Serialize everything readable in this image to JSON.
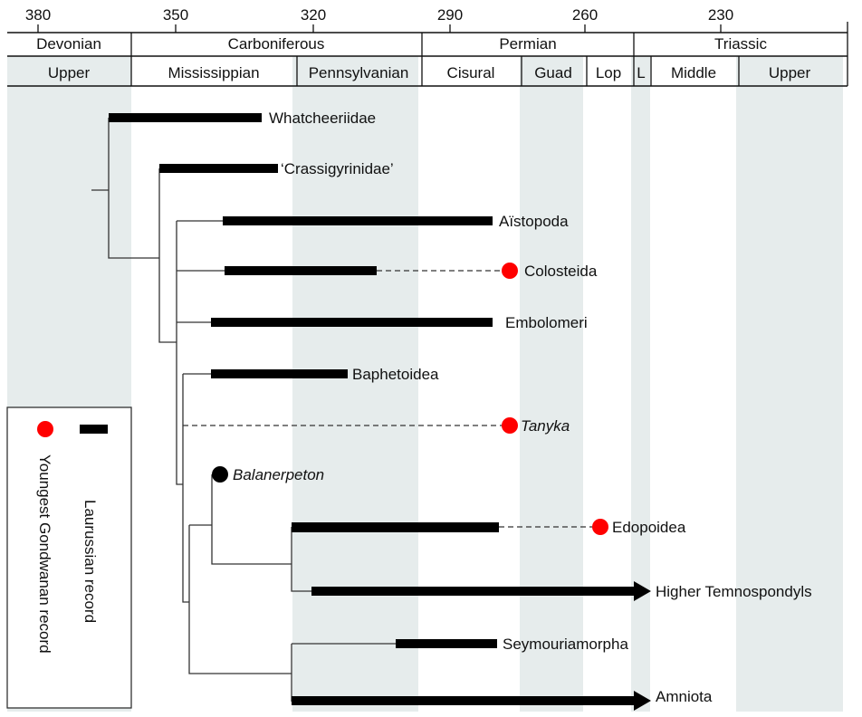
{
  "time_axis": {
    "ticks": [
      "380",
      "350",
      "320",
      "290",
      "260",
      "230"
    ]
  },
  "periods": [
    "Devonian",
    "Carboniferous",
    "Permian",
    "Triassic"
  ],
  "subdivisions": [
    "Upper",
    "Mississippian",
    "Pennsylvanian",
    "Cisural",
    "Guad",
    "Lop",
    "L",
    "Middle",
    "Upper"
  ],
  "taxa": {
    "whatcheeriidae": "Whatcheeriidae",
    "crassigyrinidae": "‘Crassigyrinidae’",
    "aistopoda": "Aïstopoda",
    "colosteida": "Colosteida",
    "embolomeri": "Embolomeri",
    "baphetoidea": "Baphetoidea",
    "tanyka": "Tanyka",
    "balanerpeton": "Balanerpeton",
    "edopoidea": "Edopoidea",
    "higher_temnospondyls": "Higher Temnospondyls",
    "seymouriamorpha": "Seymouriamorpha",
    "amniota": "Amniota"
  },
  "legend": {
    "laurussian": "Laurussian record",
    "gondwanan": "Youngest Gondwanan record"
  },
  "colors": {
    "gondwanan_marker": "#ff0000",
    "laurussian_bar": "#000000",
    "shaded_interval": "#e6ecec"
  }
}
